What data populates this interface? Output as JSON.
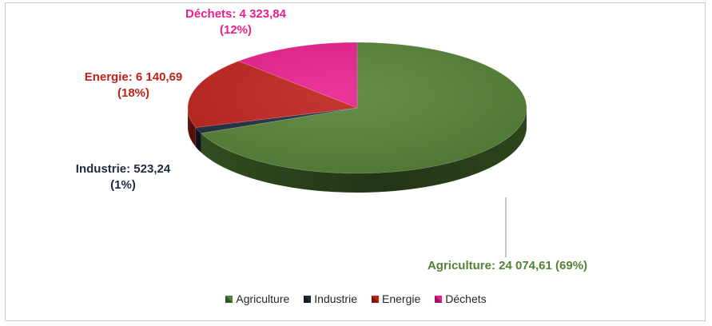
{
  "chart_data": {
    "type": "pie",
    "title": "",
    "slices": [
      {
        "name": "Agriculture",
        "value": 24074.61,
        "percent": 69,
        "value_label": "24 074,61",
        "percent_label": "(69%)",
        "color": "#548235",
        "label_color": "#548235"
      },
      {
        "name": "Industrie",
        "value": 523.24,
        "percent": 1,
        "value_label": "523,24",
        "percent_label": "(1%)",
        "color": "#1f2a3d",
        "label_color": "#1f2a3d"
      },
      {
        "name": "Energie",
        "value": 6140.69,
        "percent": 18,
        "value_label": "6 140,69",
        "percent_label": "(18%)",
        "color": "#c0201a",
        "label_color": "#c0201a"
      },
      {
        "name": "Déchets",
        "value": 4323.84,
        "percent": 12,
        "value_label": "4 323,84",
        "percent_label": "(12%)",
        "color": "#e91e8c",
        "label_color": "#e91e8c"
      }
    ],
    "legend_position": "bottom",
    "three_d": true
  },
  "labels": {
    "agriculture": {
      "text": "Agriculture: 24 074,61  (69%)"
    },
    "industrie": {
      "line1": "Industrie:  523,24",
      "line2": "(1%)"
    },
    "energie": {
      "line1": "Energie:  6 140,69",
      "line2": "(18%)"
    },
    "dechets": {
      "line1": "Déchets:  4 323,84",
      "line2": "(12%)"
    }
  },
  "legend": {
    "items": [
      {
        "label": "Agriculture",
        "color": "#548235"
      },
      {
        "label": "Industrie",
        "color": "#1f2a3d"
      },
      {
        "label": "Energie",
        "color": "#c0201a"
      },
      {
        "label": "Déchets",
        "color": "#e91e8c"
      }
    ]
  }
}
